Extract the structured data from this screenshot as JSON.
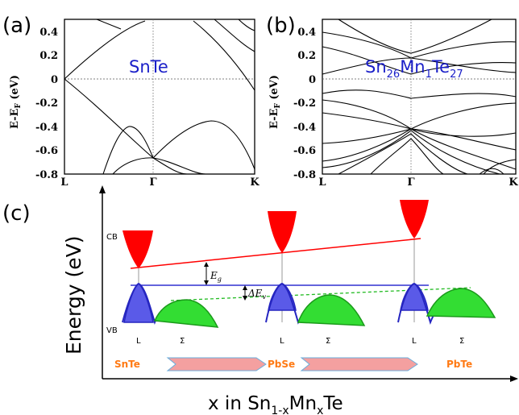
{
  "panels": {
    "a": {
      "label": "(a)",
      "material": "SnTe"
    },
    "b": {
      "label": "(b)",
      "material_base": "Sn",
      "material_s1": "26",
      "material_mid": "Mn",
      "material_s2": "1",
      "material_end": "Te",
      "material_s3": "27"
    },
    "c": {
      "label": "(c)"
    }
  },
  "band_axes": {
    "ylabel_main": "E-E",
    "ylabel_sub": "F",
    "ylabel_unit": " (eV)",
    "yticks": [
      "0.4",
      "0.2",
      "0",
      "-0.2",
      "-0.4",
      "-0.6",
      "-0.8"
    ],
    "kpoints": [
      "L",
      "Γ",
      "K"
    ]
  },
  "schematic": {
    "cb_label": "CB",
    "vb_label": "VB",
    "eg_label": "E",
    "eg_sub": "g",
    "dev_label": "ΔE",
    "dev_sub": "v",
    "point_L": "L",
    "point_Sigma": "Σ",
    "materials": [
      "SnTe",
      "PbSe",
      "PbTe"
    ],
    "energy_label": "Energy (eV)",
    "x_label_main": "x in Sn",
    "x_sub1": "1-x",
    "x_mid": "Mn",
    "x_sub2": "x",
    "x_end": "Te"
  },
  "colors": {
    "material_text": "#1a1fc8",
    "conduction_band": "#ff0000",
    "valence_L": "#5050e6",
    "valence_Sigma": "#22cc22",
    "arrow_fill": "#f4a0a0",
    "material_label": "#ff7a14"
  },
  "chart_data": [
    {
      "type": "line",
      "title": "",
      "ylabel": "E-E_F (eV)",
      "xlabel": "",
      "ylim": [
        -0.8,
        0.5
      ],
      "x_ticks": [
        "L",
        "Γ",
        "K"
      ],
      "y_ticks": [
        0.4,
        0.2,
        0,
        -0.2,
        -0.4,
        -0.6,
        -0.8
      ],
      "annotation": "SnTe",
      "series": [
        {
          "x": [
            0,
            0.2,
            0.4,
            0.6,
            0.8,
            1.0
          ],
          "values": [
            0.0,
            -0.13,
            -0.27,
            -0.41,
            -0.54,
            -0.67
          ]
        },
        {
          "x": [
            0,
            0.15,
            0.3,
            0.5,
            0.75,
            1.0
          ],
          "values": [
            0.0,
            0.16,
            0.31,
            0.44,
            0.5,
            0.5
          ]
        },
        {
          "x": [
            0.35,
            0.45,
            0.6,
            0.8,
            1.0
          ],
          "values": [
            -0.8,
            -0.5,
            -0.39,
            -0.47,
            -0.67
          ]
        },
        {
          "x": [
            1.0,
            1.3,
            1.6,
            1.8,
            2.0
          ],
          "values": [
            -0.67,
            -0.45,
            -0.37,
            -0.5,
            -0.74
          ]
        },
        {
          "x": [
            0.7,
            1.0,
            1.4,
            2.0
          ],
          "values": [
            -0.8,
            -0.67,
            -0.8,
            -0.8
          ]
        },
        {
          "x": [
            1.3,
            1.55,
            1.8,
            2.0
          ],
          "values": [
            0.5,
            0.3,
            0.07,
            -0.05
          ]
        }
      ]
    },
    {
      "type": "line",
      "title": "",
      "ylabel": "E-E_F (eV)",
      "xlabel": "",
      "ylim": [
        -0.8,
        0.5
      ],
      "x_ticks": [
        "L",
        "Γ",
        "K"
      ],
      "y_ticks": [
        0.4,
        0.2,
        0,
        -0.2,
        -0.4,
        -0.6,
        -0.8
      ],
      "annotation": "Sn26Mn1Te27",
      "series": [
        {
          "x": [
            0,
            0.5,
            1.0,
            1.5,
            2.0
          ],
          "values": [
            -0.12,
            -0.09,
            -0.1,
            -0.11,
            -0.13
          ]
        },
        {
          "x": [
            0,
            0.5,
            1.0,
            1.5,
            2.0
          ],
          "values": [
            -0.18,
            -0.2,
            -0.35,
            -0.22,
            -0.17
          ]
        },
        {
          "x": [
            0,
            0.5,
            1.0,
            1.5,
            2.0
          ],
          "values": [
            -0.26,
            -0.31,
            -0.42,
            -0.36,
            -0.25
          ]
        },
        {
          "x": [
            0,
            0.5,
            1.0,
            1.5,
            2.0
          ],
          "values": [
            -0.52,
            -0.48,
            -0.42,
            -0.5,
            -0.58
          ]
        },
        {
          "x": [
            0,
            0.5,
            1.0,
            1.5,
            2.0
          ],
          "values": [
            -0.7,
            -0.62,
            -0.43,
            -0.65,
            -0.78
          ]
        }
      ]
    },
    {
      "type": "area",
      "title": "",
      "ylabel": "Energy (eV)",
      "xlabel": "x in Sn1-xMnxTe",
      "materials": [
        "SnTe",
        "PbSe",
        "PbTe"
      ],
      "annotations": [
        "CB",
        "VB",
        "Eg",
        "ΔEv",
        "L",
        "Σ"
      ]
    }
  ]
}
